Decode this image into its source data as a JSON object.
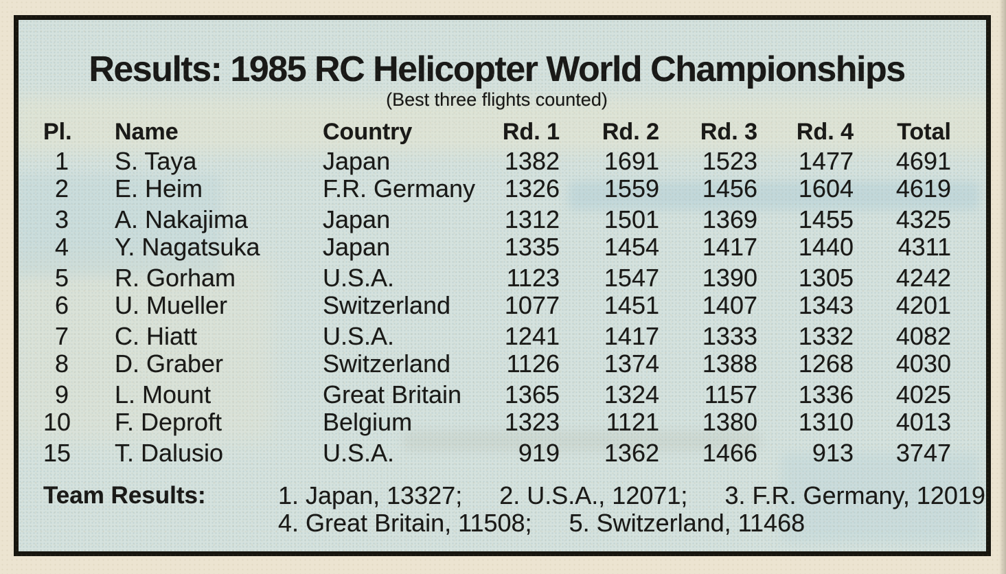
{
  "title": "Results: 1985 RC Helicopter World Championships",
  "subtitle": "(Best three flights counted)",
  "table": {
    "columns": [
      "Pl.",
      "Name",
      "Country",
      "Rd. 1",
      "Rd. 2",
      "Rd. 3",
      "Rd. 4",
      "Total"
    ],
    "rows": [
      {
        "pl": "1",
        "name": "S. Taya",
        "country": "Japan",
        "rd1": "1382",
        "rd2": "1691",
        "rd3": "1523",
        "rd4": "1477",
        "total": "4691"
      },
      {
        "pl": "2",
        "name": "E. Heim",
        "country": "F.R. Germany",
        "rd1": "1326",
        "rd2": "1559",
        "rd3": "1456",
        "rd4": "1604",
        "total": "4619"
      },
      {
        "pl": "3",
        "name": "A. Nakajima",
        "country": "Japan",
        "rd1": "1312",
        "rd2": "1501",
        "rd3": "1369",
        "rd4": "1455",
        "total": "4325"
      },
      {
        "pl": "4",
        "name": "Y. Nagatsuka",
        "country": "Japan",
        "rd1": "1335",
        "rd2": "1454",
        "rd3": "1417",
        "rd4": "1440",
        "total": "4311"
      },
      {
        "pl": "5",
        "name": "R. Gorham",
        "country": "U.S.A.",
        "rd1": "1123",
        "rd2": "1547",
        "rd3": "1390",
        "rd4": "1305",
        "total": "4242"
      },
      {
        "pl": "6",
        "name": "U. Mueller",
        "country": "Switzerland",
        "rd1": "1077",
        "rd2": "1451",
        "rd3": "1407",
        "rd4": "1343",
        "total": "4201"
      },
      {
        "pl": "7",
        "name": "C. Hiatt",
        "country": "U.S.A.",
        "rd1": "1241",
        "rd2": "1417",
        "rd3": "1333",
        "rd4": "1332",
        "total": "4082"
      },
      {
        "pl": "8",
        "name": "D. Graber",
        "country": "Switzerland",
        "rd1": "1126",
        "rd2": "1374",
        "rd3": "1388",
        "rd4": "1268",
        "total": "4030"
      },
      {
        "pl": "9",
        "name": "L. Mount",
        "country": "Great Britain",
        "rd1": "1365",
        "rd2": "1324",
        "rd3": "1157",
        "rd4": "1336",
        "total": "4025"
      },
      {
        "pl": "10",
        "name": "F. Deproft",
        "country": "Belgium",
        "rd1": "1323",
        "rd2": "1121",
        "rd3": "1380",
        "rd4": "1310",
        "total": "4013"
      },
      {
        "pl": "15",
        "name": "T. Dalusio",
        "country": "U.S.A.",
        "rd1": "919",
        "rd2": "1362",
        "rd3": "1466",
        "rd4": "913",
        "total": "3747"
      }
    ]
  },
  "team_results": {
    "label": "Team Results:",
    "line1": [
      "1. Japan, 13327;",
      "2. U.S.A., 12071;",
      "3. F.R. Germany, 12019"
    ],
    "line2": [
      "4. Great Britain, 11508;",
      "5. Switzerland, 11468"
    ]
  },
  "colors": {
    "paper": "#ece4d1",
    "panel": "#d5e2de",
    "ink": "#191917",
    "frame_border": "#17160f"
  }
}
